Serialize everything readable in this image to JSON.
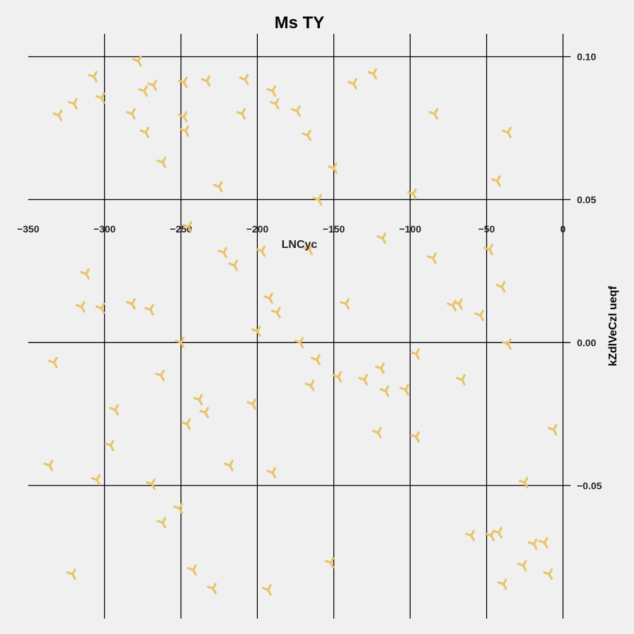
{
  "chart_data": {
    "type": "scatter",
    "title": "Ms TY",
    "xlabel": "LNCyc",
    "ylabel": "kZdlVeCzl ueqf",
    "xlim": [
      -350,
      5
    ],
    "ylim": [
      -0.0965,
      0.108
    ],
    "xticks": [
      -350,
      -300,
      -250,
      -200,
      -150,
      -100,
      -50,
      0
    ],
    "xtick_labels": [
      "−350",
      "−300",
      "−250",
      "−200",
      "−150",
      "−100",
      "−50",
      "0"
    ],
    "yticks": [
      -0.05,
      0.0,
      0.05,
      0.1
    ],
    "ytick_labels": [
      "−0.05",
      "0.00",
      "0.05",
      "0.10"
    ],
    "grid": true,
    "marker": "tri",
    "color": "#e8c46b",
    "points": [
      [
        -278,
        0.0985
      ],
      [
        -307,
        0.093
      ],
      [
        -302,
        0.0855
      ],
      [
        -320,
        0.0835
      ],
      [
        -330,
        0.0795
      ],
      [
        -268,
        0.09
      ],
      [
        -274,
        0.088
      ],
      [
        -282,
        0.08
      ],
      [
        -273,
        0.0735
      ],
      [
        -262,
        0.063
      ],
      [
        -248,
        0.091
      ],
      [
        -248,
        0.079
      ],
      [
        -247,
        0.074
      ],
      [
        -233,
        0.0915
      ],
      [
        -225,
        0.0545
      ],
      [
        -208,
        0.092
      ],
      [
        -210,
        0.08
      ],
      [
        -190,
        0.088
      ],
      [
        -188,
        0.0835
      ],
      [
        -174,
        0.081
      ],
      [
        -167,
        0.0725
      ],
      [
        -150,
        0.061
      ],
      [
        -160,
        0.05
      ],
      [
        -137,
        0.0905
      ],
      [
        -124,
        0.094
      ],
      [
        -84,
        0.08
      ],
      [
        -98,
        0.052
      ],
      [
        -36,
        0.0735
      ],
      [
        -43,
        0.0565
      ],
      [
        -245,
        0.0405
      ],
      [
        -222,
        0.0315
      ],
      [
        -215,
        0.027
      ],
      [
        -197,
        0.032
      ],
      [
        -166,
        0.0325
      ],
      [
        -118,
        0.0365
      ],
      [
        -85,
        0.0295
      ],
      [
        -48,
        0.0325
      ],
      [
        -40,
        0.0195
      ],
      [
        -312,
        0.024
      ],
      [
        -315,
        0.0125
      ],
      [
        -302,
        0.012
      ],
      [
        -282,
        0.0135
      ],
      [
        -270,
        0.0115
      ],
      [
        -192,
        0.0155
      ],
      [
        -187,
        0.0105
      ],
      [
        -142,
        0.0135
      ],
      [
        -72,
        0.013
      ],
      [
        -68,
        0.0135
      ],
      [
        -54,
        0.0095
      ],
      [
        -200,
        0.004
      ],
      [
        -172,
        0.0
      ],
      [
        -250,
        0.0
      ],
      [
        -333,
        -0.007
      ],
      [
        -263,
        -0.0115
      ],
      [
        -161,
        -0.006
      ],
      [
        -119,
        -0.009
      ],
      [
        -96,
        -0.004
      ],
      [
        -36,
        -0.0005
      ],
      [
        -165,
        -0.015
      ],
      [
        -147,
        -0.012
      ],
      [
        -130,
        -0.013
      ],
      [
        -116,
        -0.017
      ],
      [
        -103,
        -0.0165
      ],
      [
        -66,
        -0.013
      ],
      [
        -238,
        -0.02
      ],
      [
        -234,
        -0.0245
      ],
      [
        -246,
        -0.0285
      ],
      [
        -203,
        -0.0215
      ],
      [
        -293,
        -0.0235
      ],
      [
        -121,
        -0.0315
      ],
      [
        -96,
        -0.033
      ],
      [
        -6,
        -0.0305
      ],
      [
        -296,
        -0.036
      ],
      [
        -336,
        -0.043
      ],
      [
        -305,
        -0.048
      ],
      [
        -269,
        -0.0495
      ],
      [
        -218,
        -0.043
      ],
      [
        -190,
        -0.0455
      ],
      [
        -251,
        -0.058
      ],
      [
        -262,
        -0.063
      ],
      [
        -25,
        -0.049
      ],
      [
        -60,
        -0.0675
      ],
      [
        -47,
        -0.0675
      ],
      [
        -42,
        -0.0665
      ],
      [
        -19,
        -0.0705
      ],
      [
        -12,
        -0.07
      ],
      [
        -26,
        -0.078
      ],
      [
        -9,
        -0.081
      ],
      [
        -39,
        -0.0845
      ],
      [
        -321,
        -0.081
      ],
      [
        -242,
        -0.0795
      ],
      [
        -229,
        -0.086
      ],
      [
        -193,
        -0.0865
      ],
      [
        -152,
        -0.077
      ]
    ]
  }
}
